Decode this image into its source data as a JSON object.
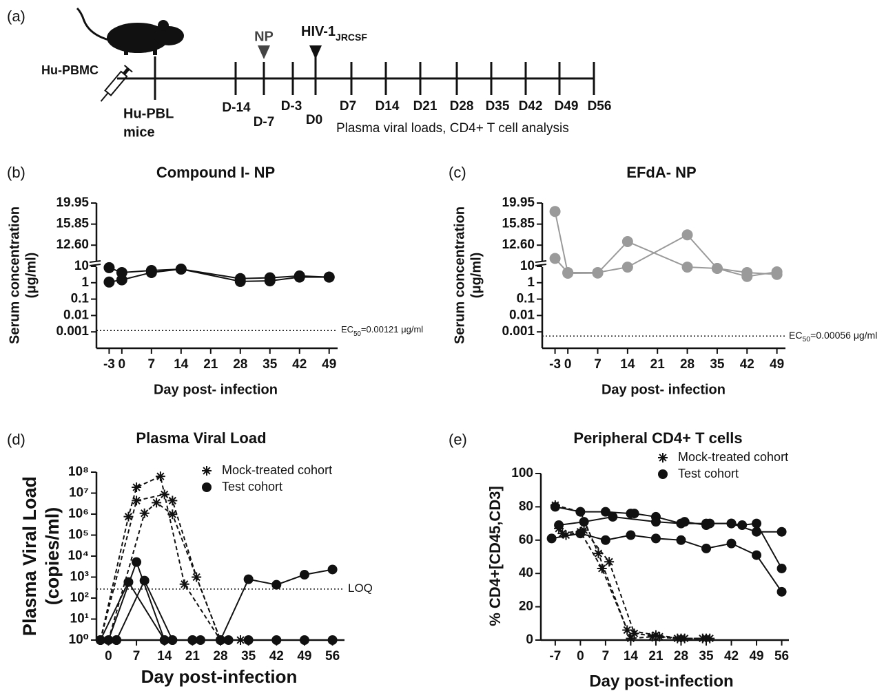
{
  "panel_labels": [
    "(a)",
    "(b)",
    "(c)",
    "(d)",
    "(e)"
  ],
  "timeline": {
    "injection_label": "Hu-PBMC",
    "start_label": [
      "Hu-PBL",
      "mice"
    ],
    "np_label": "NP",
    "hiv_label": "HIV-1",
    "hiv_sub": "JRCSF",
    "days": [
      "D-14",
      "D-7",
      "D-3",
      "D0",
      "D7",
      "D14",
      "D21",
      "D28",
      "D35",
      "D42",
      "D49",
      "D56"
    ],
    "analysis_label": "Plasma viral loads, CD4+ T cell analysis"
  },
  "chart_data": [
    {
      "type": "line",
      "title": "Compound I- NP",
      "x_label": "Day post- infection",
      "y_label": [
        "Serum concentration",
        "(μg/ml)"
      ],
      "y_scale": "log",
      "y_break": 10,
      "xlim": [
        -6,
        51
      ],
      "xticks": [
        -3,
        0,
        7,
        14,
        21,
        28,
        35,
        42,
        49
      ],
      "ylim": [
        0.0001,
        19.95
      ],
      "yticks": [
        0.001,
        0.01,
        0.1,
        1,
        10,
        {
          "value": 12.6,
          "label": "12.60"
        },
        15.85,
        19.95
      ],
      "reference_line": {
        "value": 0.00121,
        "label": "EC",
        "label_sub": "50",
        "label_rest": "=0.00121 μg/ml"
      },
      "series": [
        {
          "marker": "circle",
          "line_style": "solid",
          "color": "#111111",
          "subjects": [
            {
              "x": [
                -3,
                0,
                7,
                14,
                28,
                35,
                42,
                49
              ],
              "values": [
                8.3,
                4.2,
                5.6,
                6.8,
                1.8,
                2,
                2.6,
                2.2
              ]
            },
            {
              "x": [
                -3,
                0,
                7,
                14,
                28,
                35,
                42,
                49
              ],
              "values": [
                1.1,
                1.5,
                4.2,
                6.8,
                1.2,
                1.3,
                2.2,
                2.2
              ]
            }
          ]
        }
      ]
    },
    {
      "type": "line",
      "title": "EFdA- NP",
      "x_label": "Day post- infection",
      "y_label": [
        "Serum concentration",
        "(μg/ml)"
      ],
      "y_scale": "log",
      "y_break": 10,
      "xlim": [
        -6,
        51
      ],
      "xticks": [
        -3,
        0,
        7,
        14,
        21,
        28,
        35,
        42,
        49
      ],
      "ylim": [
        0.0001,
        19.95
      ],
      "yticks": [
        0.001,
        0.01,
        0.1,
        1,
        10,
        {
          "value": 12.6,
          "label": "12.60"
        },
        15.85,
        19.95
      ],
      "reference_line": {
        "value": 0.00056,
        "label": "EC",
        "label_sub": "50",
        "label_rest": "=0.00056 μg/ml"
      },
      "series": [
        {
          "marker": "circle",
          "line_style": "solid",
          "color": "#9a9a9a",
          "subjects": [
            {
              "x": [
                -3,
                0,
                7,
                14,
                28,
                35,
                42,
                49
              ],
              "values": [
                18.2,
                3.8,
                3.9,
                13.1,
                9,
                7.5,
                4.2,
                3.2
              ]
            },
            {
              "x": [
                -3,
                0,
                7,
                14,
                28,
                35,
                42,
                49
              ],
              "values": [
                10.9,
                4.2,
                4.2,
                9,
                14.1,
                7.5,
                2.4,
                4.6
              ]
            }
          ]
        }
      ]
    },
    {
      "type": "line",
      "title": "Plasma Viral Load",
      "x_label": "Day post-infection",
      "y_label": [
        "Plasma Viral Load",
        "(copies/ml)"
      ],
      "y_scale": "log",
      "xlim": [
        -3,
        59
      ],
      "xticks": [
        0,
        7,
        14,
        21,
        28,
        35,
        42,
        49,
        56
      ],
      "ylim": [
        1,
        100000000
      ],
      "yticks": [
        {
          "value": 1,
          "label": "10⁰"
        },
        {
          "value": 10,
          "label": "10¹"
        },
        {
          "value": 100,
          "label": "10²"
        },
        {
          "value": 1000,
          "label": "10³"
        },
        {
          "value": 10000,
          "label": "10⁴"
        },
        {
          "value": 100000,
          "label": "10⁵"
        },
        {
          "value": 1000000,
          "label": "10⁶"
        },
        {
          "value": 10000000,
          "label": "10⁷"
        },
        {
          "value": 100000000,
          "label": "10⁸"
        }
      ],
      "reference_line": {
        "value": 270,
        "label": "LOQ"
      },
      "legend": "upper right",
      "series": [
        {
          "name": "Mock-treated cohort",
          "marker": "asterisk",
          "line_style": "dashed",
          "color": "#111111",
          "subjects": [
            {
              "x": [
                -2,
                5,
                7,
                13,
                19,
                28
              ],
              "values": [
                1,
                760000,
                19000000,
                63000000,
                460,
                1
              ]
            },
            {
              "x": [
                -2,
                7,
                14,
                16,
                22,
                28
              ],
              "values": [
                1,
                4400000,
                8700000,
                4400000,
                1000,
                1
              ]
            },
            {
              "x": [
                0,
                9,
                12,
                16,
                28,
                33,
                35
              ],
              "values": [
                1,
                1100000,
                3500000,
                980000,
                1,
                1,
                1
              ]
            }
          ]
        },
        {
          "name": "Test cohort",
          "marker": "circle",
          "line_style": "solid",
          "color": "#111111",
          "subjects": [
            {
              "x": [
                -2,
                2,
                28,
                35,
                42,
                49,
                56
              ],
              "values": [
                1,
                1,
                1,
                790,
                430,
                1300,
                2300
              ]
            },
            {
              "x": [
                -2,
                5,
                14,
                16,
                21,
                28,
                35,
                42,
                49,
                56
              ],
              "values": [
                1,
                580,
                1,
                1,
                1,
                1,
                1,
                1,
                1,
                1
              ]
            },
            {
              "x": [
                0,
                7,
                14,
                21,
                28
              ],
              "values": [
                1,
                5200,
                1,
                1,
                1
              ]
            },
            {
              "x": [
                -2,
                2,
                9,
                16,
                23,
                30
              ],
              "values": [
                1,
                1,
                680,
                1,
                1,
                1
              ]
            }
          ]
        }
      ]
    },
    {
      "type": "line",
      "title": "Peripheral CD4+ T cells",
      "x_label": "Day post-infection",
      "y_label": [
        "% CD4+[CD45,CD3]"
      ],
      "y_scale": "linear",
      "xlim": [
        -11,
        58
      ],
      "xticks": [
        -7,
        0,
        7,
        14,
        21,
        28,
        35,
        42,
        49,
        56
      ],
      "ylim": [
        0,
        100
      ],
      "yticks": [
        0,
        20,
        40,
        60,
        80,
        100
      ],
      "legend": "upper center",
      "series": [
        {
          "name": "Mock-treated cohort",
          "marker": "asterisk",
          "line_style": "dashed",
          "color": "#111111",
          "subjects": [
            {
              "x": [
                -7,
                0,
                5,
                13,
                21,
                28,
                35
              ],
              "values": [
                81,
                77,
                52,
                6,
                3,
                1,
                1
              ]
            },
            {
              "x": [
                -6,
                -4,
                0,
                6,
                14,
                20,
                27,
                34
              ],
              "values": [
                67,
                63,
                65,
                43,
                1,
                2,
                1,
                1
              ]
            },
            {
              "x": [
                -5,
                1,
                8,
                15,
                22,
                29,
                36
              ],
              "values": [
                64,
                66,
                47,
                4,
                2,
                1,
                1
              ]
            }
          ]
        },
        {
          "name": "Test cohort",
          "marker": "circle",
          "line_style": "solid",
          "color": "#111111",
          "subjects": [
            {
              "x": [
                -7,
                0,
                7,
                14,
                15,
                21,
                28,
                29,
                35,
                36,
                42,
                45,
                49,
                56
              ],
              "values": [
                80,
                77,
                77,
                76,
                76,
                74,
                70,
                71,
                69,
                70,
                70,
                69,
                70,
                43
              ]
            },
            {
              "x": [
                -6,
                1,
                9,
                21,
                28,
                35,
                42,
                49,
                56
              ],
              "values": [
                69,
                71,
                74,
                71,
                70,
                70,
                70,
                65,
                65
              ]
            },
            {
              "x": [
                -8,
                0,
                7,
                14,
                21,
                28,
                35,
                42,
                49,
                56
              ],
              "values": [
                61,
                64,
                60,
                63,
                61,
                60,
                55,
                58,
                51,
                29
              ]
            }
          ]
        }
      ]
    }
  ]
}
